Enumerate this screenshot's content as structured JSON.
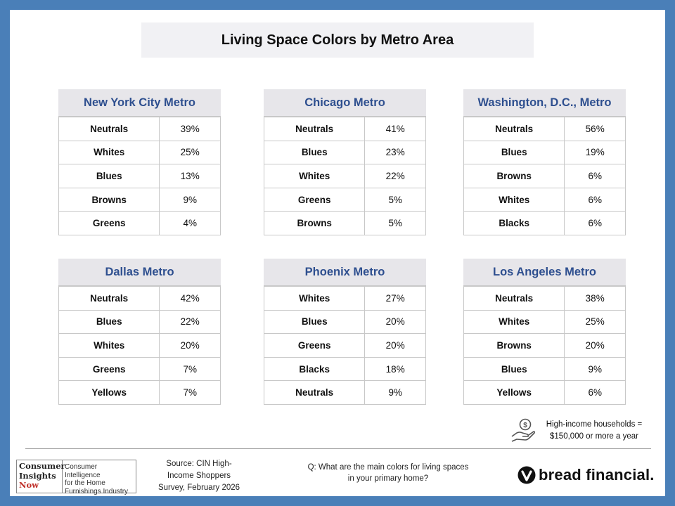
{
  "title": "Living Space Colors by Metro Area",
  "chart_data": {
    "type": "table",
    "title": "Living Space Colors by Metro Area",
    "tables": [
      {
        "metro": "New York City Metro",
        "rows": [
          {
            "color": "Neutrals",
            "pct": "39%"
          },
          {
            "color": "Whites",
            "pct": "25%"
          },
          {
            "color": "Blues",
            "pct": "13%"
          },
          {
            "color": "Browns",
            "pct": "9%"
          },
          {
            "color": "Greens",
            "pct": "4%"
          }
        ]
      },
      {
        "metro": "Chicago Metro",
        "rows": [
          {
            "color": "Neutrals",
            "pct": "41%"
          },
          {
            "color": "Blues",
            "pct": "23%"
          },
          {
            "color": "Whites",
            "pct": "22%"
          },
          {
            "color": "Greens",
            "pct": "5%"
          },
          {
            "color": "Browns",
            "pct": "5%"
          }
        ]
      },
      {
        "metro": "Washington, D.C., Metro",
        "rows": [
          {
            "color": "Neutrals",
            "pct": "56%"
          },
          {
            "color": "Blues",
            "pct": "19%"
          },
          {
            "color": "Browns",
            "pct": "6%"
          },
          {
            "color": "Whites",
            "pct": "6%"
          },
          {
            "color": "Blacks",
            "pct": "6%"
          }
        ]
      },
      {
        "metro": "Dallas Metro",
        "rows": [
          {
            "color": "Neutrals",
            "pct": "42%"
          },
          {
            "color": "Blues",
            "pct": "22%"
          },
          {
            "color": "Whites",
            "pct": "20%"
          },
          {
            "color": "Greens",
            "pct": "7%"
          },
          {
            "color": "Yellows",
            "pct": "7%"
          }
        ]
      },
      {
        "metro": "Phoenix Metro",
        "rows": [
          {
            "color": "Whites",
            "pct": "27%"
          },
          {
            "color": "Blues",
            "pct": "20%"
          },
          {
            "color": "Greens",
            "pct": "20%"
          },
          {
            "color": "Blacks",
            "pct": "18%"
          },
          {
            "color": "Neutrals",
            "pct": "9%"
          }
        ]
      },
      {
        "metro": "Los Angeles Metro",
        "rows": [
          {
            "color": "Neutrals",
            "pct": "38%"
          },
          {
            "color": "Whites",
            "pct": "25%"
          },
          {
            "color": "Browns",
            "pct": "20%"
          },
          {
            "color": "Blues",
            "pct": "9%"
          },
          {
            "color": "Yellows",
            "pct": "6%"
          }
        ]
      }
    ]
  },
  "note": {
    "line1": "High-income households =",
    "line2": "$150,000 or more a year",
    "icon": "hand-coin-icon"
  },
  "footer": {
    "logo": {
      "left": [
        "Consumer",
        "Insights",
        "Now"
      ],
      "right": [
        "Consumer Intelligence",
        "for the Home",
        "Furnishings Industry"
      ]
    },
    "source": [
      "Source: CIN High-",
      "Income Shoppers",
      "Survey, February 2026"
    ],
    "question": [
      "Q: What are the main colors for living spaces",
      "in your primary home?"
    ],
    "brand": "bread financial.",
    "brand_icon": "bread-financial-mark-icon"
  },
  "colors": {
    "frame": "#4a7fb8",
    "metro_header_text": "#2e4f8f",
    "metro_header_bg": "#e7e6ea",
    "title_bg": "#f1f1f4"
  }
}
